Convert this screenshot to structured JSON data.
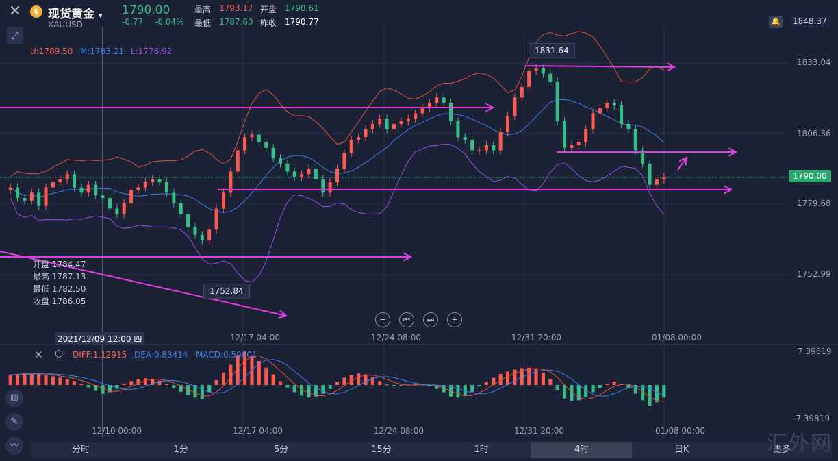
{
  "header": {
    "title": "现货黄金",
    "title_arrow": "▾",
    "symbol": "XAUUSD",
    "price": "1790.00",
    "change": "-0.77",
    "change_pct": "-0.04%",
    "high_label": "最高",
    "high": "1793.17",
    "open_label": "开盘",
    "open": "1790.61",
    "low_label": "最低",
    "low": "1787.60",
    "prev_close_label": "昨收",
    "prev_close": "1790.77",
    "top_right_price": "1848.37"
  },
  "bb_legend": {
    "upper": "U:1789.50",
    "middle": "M:1783.21",
    "lower": "L:1776.92"
  },
  "ohlc_readout": {
    "open": "开盘 1784.47",
    "high": "最高 1787.13",
    "low": "最低 1782.50",
    "close": "收盘 1786.05"
  },
  "annotations": {
    "max_tag": "1831.64",
    "min_tag": "1752.84",
    "current_price_tag": "1790.00",
    "cursor_date": "2021/12/09 12:00 四"
  },
  "macd": {
    "diff": "DIFF:1.12915",
    "dea": "DEA:0.83414",
    "macd": "MACD:0.59001",
    "ymax": "7.39819",
    "ymin": "-7.39819"
  },
  "tabs": [
    "分时",
    "1分",
    "5分",
    "15分",
    "1时",
    "4时",
    "日K",
    "更多"
  ],
  "active_tab": "4时",
  "watermark": "汇外网",
  "colors": {
    "up": "#ff5a4f",
    "down": "#35c08a",
    "upper_band": "#e0533d",
    "mid_band": "#3f7ee8",
    "lower_band": "#9a4ee8",
    "arrows": "#e63ce6"
  },
  "chart_data": {
    "type": "candlestick",
    "title": "现货黄金 XAUUSD 4时",
    "yaxis_ticks": [
      "1833.04",
      "1806.36",
      "1779.68",
      "1752.99"
    ],
    "x_ticks": [
      "12/10 00:00",
      "12/17 04:00",
      "12/24 08:00",
      "12/31 20:00",
      "01/08 00:00"
    ],
    "ylim": [
      1745,
      1845
    ],
    "close": [
      1786,
      1782,
      1781,
      1784,
      1779,
      1786,
      1788,
      1789,
      1791,
      1786,
      1784,
      1787,
      1783,
      1782,
      1778,
      1776,
      1780,
      1785,
      1786,
      1788,
      1789,
      1788,
      1784,
      1780,
      1776,
      1771,
      1768,
      1766,
      1770,
      1778,
      1784,
      1792,
      1800,
      1805,
      1806,
      1803,
      1801,
      1797,
      1795,
      1792,
      1790,
      1791,
      1793,
      1789,
      1784,
      1788,
      1793,
      1799,
      1804,
      1805,
      1808,
      1810,
      1812,
      1808,
      1810,
      1811,
      1812,
      1814,
      1816,
      1818,
      1820,
      1818,
      1811,
      1805,
      1804,
      1800,
      1800,
      1802,
      1800,
      1807,
      1813,
      1820,
      1824,
      1830,
      1831,
      1829,
      1826,
      1811,
      1801,
      1802,
      1803,
      1808,
      1814,
      1816,
      1818,
      1817,
      1810,
      1808,
      1800,
      1795,
      1787,
      1789,
      1790
    ],
    "macd_hist": [
      2.1,
      2.3,
      2.5,
      2.4,
      2.2,
      2.1,
      1.8,
      1.5,
      1.2,
      0.8,
      0.3,
      -0.5,
      -1.2,
      -1.8,
      -1.5,
      -0.8,
      0.3,
      0.8,
      1.2,
      1.4,
      1.3,
      0.9,
      0.2,
      -0.6,
      -1.4,
      -2.0,
      -2.6,
      -2.9,
      -1.5,
      1.0,
      2.6,
      4.2,
      6.2,
      7.0,
      6.2,
      5.0,
      3.6,
      2.2,
      0.8,
      -0.5,
      -1.5,
      -2.2,
      -2.6,
      -2.4,
      -1.8,
      -0.8,
      0.6,
      1.5,
      2.1,
      2.4,
      2.2,
      1.6,
      0.8,
      0.1,
      -0.2,
      -0.1,
      0.1,
      0.2,
      0.1,
      -0.3,
      -0.8,
      -1.5,
      -2.4,
      -2.6,
      -2.3,
      -1.4,
      -0.3,
      0.6,
      1.5,
      2.3,
      2.8,
      3.2,
      3.5,
      3.6,
      3.4,
      2.6,
      1.2,
      -1.0,
      -2.8,
      -3.3,
      -3.2,
      -2.6,
      -1.5,
      -0.6,
      0.3,
      0.7,
      0.2,
      -0.6,
      -1.8,
      -3.2,
      -4.4,
      -3.6,
      -2.6
    ]
  }
}
